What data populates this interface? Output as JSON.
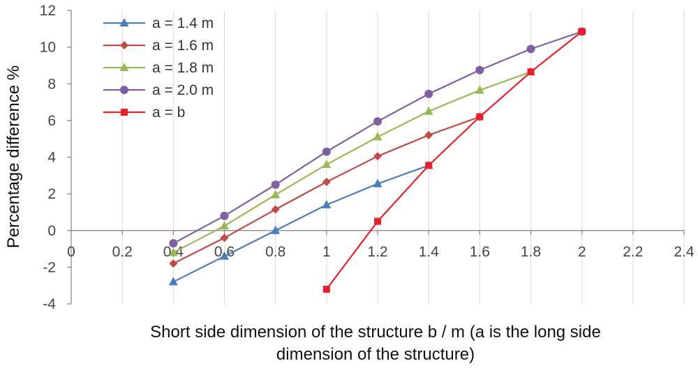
{
  "chart_data": {
    "type": "line",
    "xlabel_lines": [
      "Short side dimension of the structure b / m (a is the long side",
      "dimension of the structure)"
    ],
    "ylabel": "Percentage difference %",
    "xlim": [
      0,
      2.4
    ],
    "ylim": [
      -4,
      12
    ],
    "x_ticks": [
      0,
      0.2,
      0.4,
      0.6,
      0.8,
      1,
      1.2,
      1.4,
      1.6,
      1.8,
      2,
      2.2,
      2.4
    ],
    "x_tick_labels": [
      "0",
      "0.2",
      "0.4",
      "0.6",
      "0.8",
      "1",
      "1.2",
      "1.4",
      "1.6",
      "1.8",
      "2",
      "2.2",
      "2.4"
    ],
    "y_ticks": [
      -4,
      -2,
      0,
      2,
      4,
      6,
      8,
      10,
      12
    ],
    "y_tick_labels": [
      "-4",
      "-2",
      "0",
      "2",
      "4",
      "6",
      "8",
      "10",
      "12"
    ],
    "grid": "vertical",
    "legend_position": "top-left",
    "series": [
      {
        "name": "a = 1.4 m",
        "color": "#4A7EBB",
        "marker": "triangle",
        "x": [
          0.4,
          0.6,
          0.8,
          1.0,
          1.2,
          1.4
        ],
        "y": [
          -2.8,
          -1.4,
          0.0,
          1.4,
          2.55,
          3.55
        ]
      },
      {
        "name": "a = 1.6 m",
        "color": "#BE4B48",
        "marker": "diamond",
        "x": [
          0.4,
          0.6,
          0.8,
          1.0,
          1.2,
          1.4,
          1.6
        ],
        "y": [
          -1.8,
          -0.4,
          1.15,
          2.65,
          4.05,
          5.2,
          6.2
        ]
      },
      {
        "name": "a = 1.8 m",
        "color": "#98B954",
        "marker": "triangle",
        "x": [
          0.4,
          0.6,
          0.8,
          1.0,
          1.2,
          1.4,
          1.6,
          1.8
        ],
        "y": [
          -1.2,
          0.25,
          1.95,
          3.6,
          5.1,
          6.5,
          7.65,
          8.65
        ]
      },
      {
        "name": "a = 2.0 m",
        "color": "#7D60A0",
        "marker": "circle",
        "x": [
          0.4,
          0.6,
          0.8,
          1.0,
          1.2,
          1.4,
          1.6,
          1.8,
          2.0
        ],
        "y": [
          -0.7,
          0.8,
          2.5,
          4.3,
          5.95,
          7.45,
          8.75,
          9.9,
          10.85
        ]
      },
      {
        "name": "a = b",
        "color": "#E8202A",
        "marker": "square",
        "x": [
          1.0,
          1.2,
          1.4,
          1.6,
          1.8,
          2.0
        ],
        "y": [
          -3.2,
          0.5,
          3.55,
          6.2,
          8.65,
          10.85
        ]
      }
    ]
  }
}
